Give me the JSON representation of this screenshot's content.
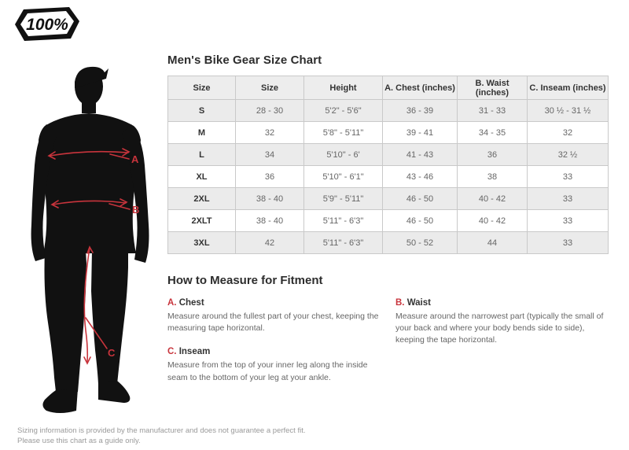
{
  "logo": {
    "text": "100%"
  },
  "title": "Men's Bike Gear Size Chart",
  "size_table": {
    "headers": [
      "Size",
      "Size",
      "Height",
      "A. Chest (inches)",
      "B. Waist (inches)",
      "C. Inseam (inches)"
    ],
    "rows": [
      [
        "S",
        "28 - 30",
        "5'2\" - 5'6\"",
        "36 - 39",
        "31 - 33",
        "30 ½ - 31 ½"
      ],
      [
        "M",
        "32",
        "5'8\" - 5'11\"",
        "39 - 41",
        "34 - 35",
        "32"
      ],
      [
        "L",
        "34",
        "5'10\" - 6'",
        "41 - 43",
        "36",
        "32 ½"
      ],
      [
        "XL",
        "36",
        "5'10\" - 6'1\"",
        "43 - 46",
        "38",
        "33"
      ],
      [
        "2XL",
        "38 - 40",
        "5'9\" - 5'11\"",
        "46 - 50",
        "40 - 42",
        "33"
      ],
      [
        "2XLT",
        "38 - 40",
        "5'11\" - 6'3\"",
        "46 - 50",
        "40 - 42",
        "33"
      ],
      [
        "3XL",
        "42",
        "5'11\" - 6'3\"",
        "50 - 52",
        "44",
        "33"
      ]
    ]
  },
  "measure_section": {
    "heading": "How to Measure for Fitment",
    "items": [
      {
        "letter": "A.",
        "name": "Chest",
        "description": "Measure around the fullest part of your chest, keeping the measuring tape horizontal."
      },
      {
        "letter": "B.",
        "name": "Waist",
        "description": "Measure around the narrowest part (typically the small of your back and where your body bends side to side), keeping the tape horizontal."
      },
      {
        "letter": "C.",
        "name": "Inseam",
        "description": "Measure from the top of your inner leg along the inside seam to the bottom of your leg at your ankle."
      }
    ]
  },
  "figure": {
    "labels": [
      "A",
      "B",
      "C"
    ]
  },
  "footer": {
    "line1": "Sizing information is provided by the manufacturer and does not guarantee a perfect fit.",
    "line2": "Please use this chart as a guide only."
  },
  "colors": {
    "accent_red": "#c8343c",
    "silhouette": "#111111",
    "table_header_bg": "#ededed",
    "row_alt_bg": "#ebebeb",
    "table_border": "#c9c9c9",
    "text_dark": "#333333",
    "text_gray": "#666666",
    "footer_gray": "#9a9a9a"
  }
}
